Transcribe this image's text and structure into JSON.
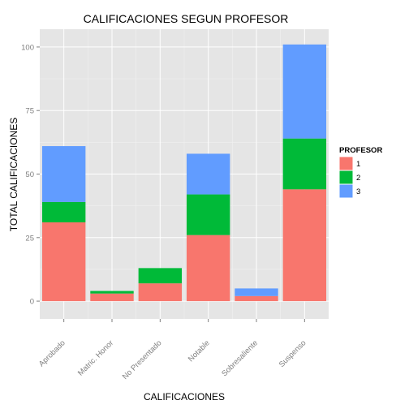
{
  "chart_data": {
    "type": "bar",
    "stacked": true,
    "title": "CALIFICACIONES SEGUN PROFESOR",
    "xlabel": "CALIFICACIONES",
    "ylabel": "TOTAL CALIFICACIONES",
    "categories": [
      "Aprobado",
      "Matric. Honor",
      "No Presentado",
      "Notable",
      "Sobresaliente",
      "Suspenso"
    ],
    "ylim": [
      -7,
      107
    ],
    "yticks": [
      0,
      25,
      50,
      75,
      100
    ],
    "grid": true,
    "legend": {
      "title": "PROFESOR",
      "position": "right",
      "labels": [
        "1",
        "2",
        "3"
      ]
    },
    "series": [
      {
        "name": "1",
        "color": "#F8766D",
        "values": [
          31,
          3,
          7,
          26,
          2,
          44
        ]
      },
      {
        "name": "2",
        "color": "#00BA38",
        "values": [
          8,
          1,
          6,
          16,
          0,
          20
        ]
      },
      {
        "name": "3",
        "color": "#619CFF",
        "values": [
          22,
          0,
          0,
          16,
          3,
          37
        ]
      }
    ]
  }
}
